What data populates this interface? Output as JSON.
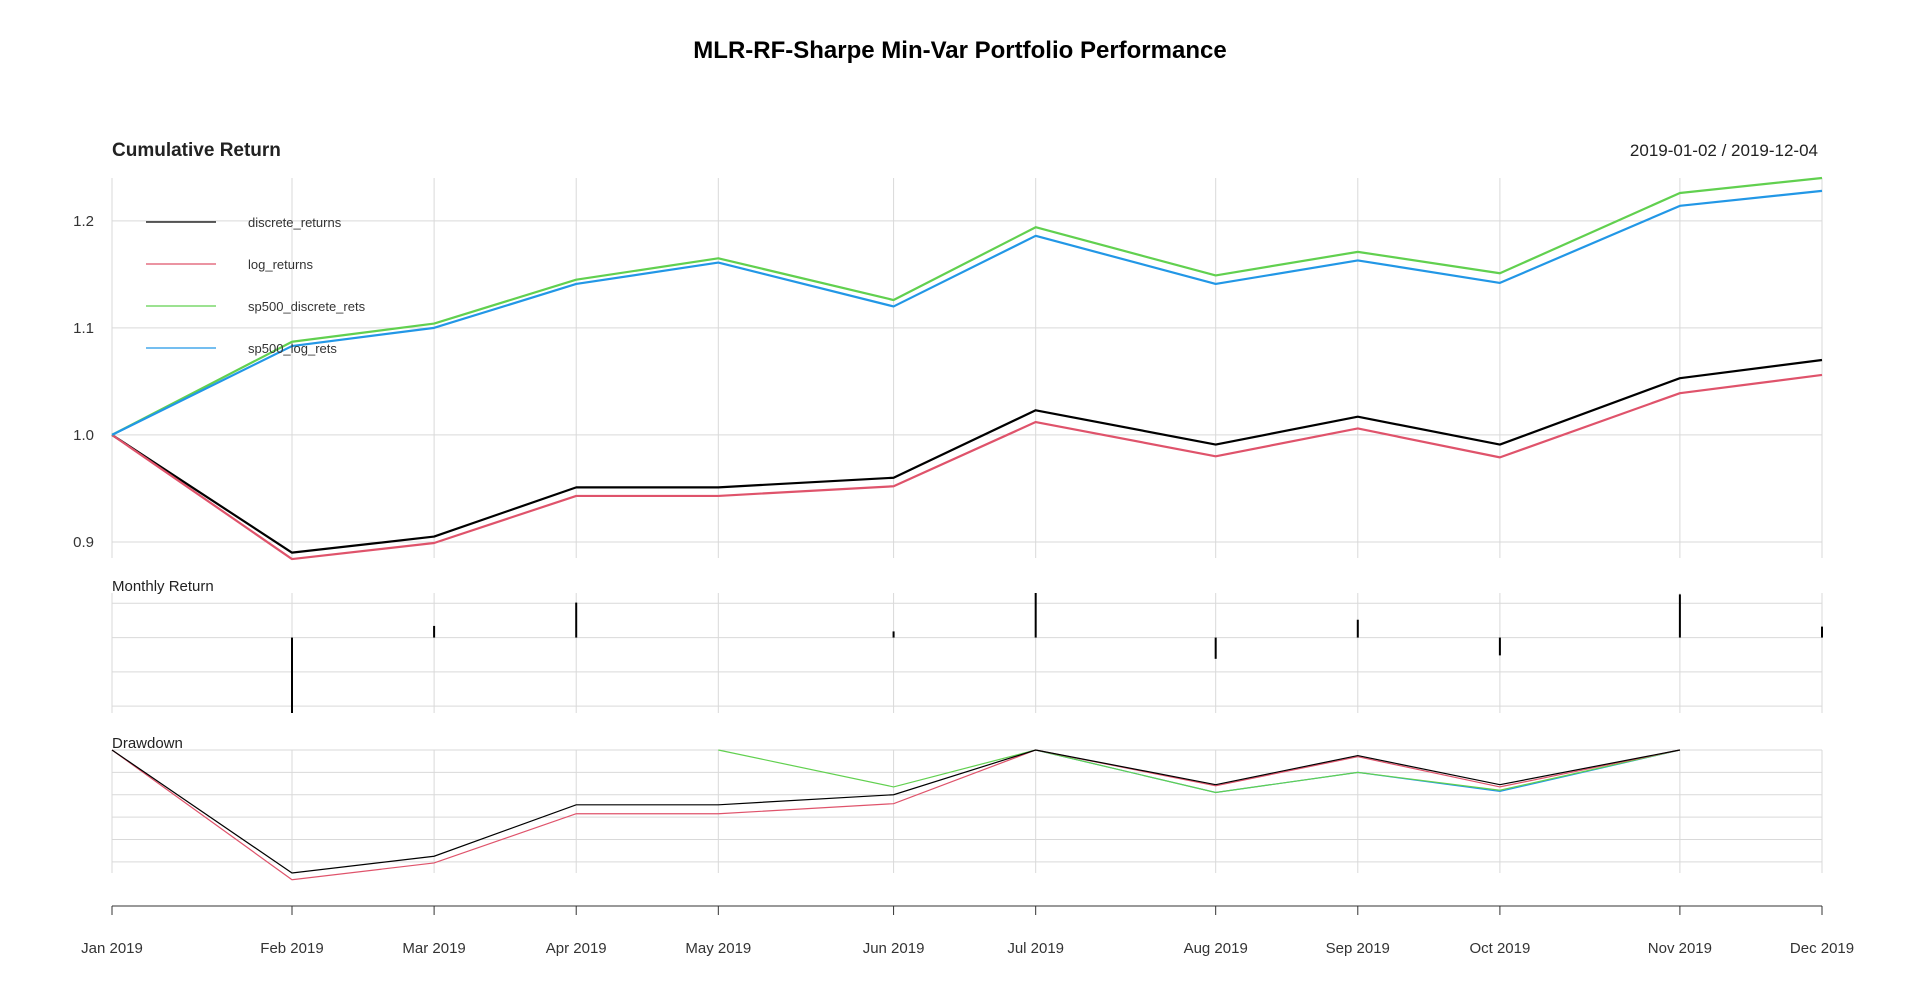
{
  "chart_data": {
    "type": "line",
    "title": "MLR-RF-Sharpe Min-Var Portfolio Performance",
    "date_range": "2019-01-02 / 2019-12-04",
    "x": [
      "Jan 2019",
      "Feb 2019",
      "Mar 2019",
      "Apr 2019",
      "May 2019",
      "Jun 2019",
      "Jul 2019",
      "Aug 2019",
      "Sep 2019",
      "Oct 2019",
      "Nov 2019",
      "Dec 2019"
    ],
    "x_days": [
      0,
      38,
      68,
      98,
      128,
      165,
      195,
      233,
      263,
      293,
      331,
      361
    ],
    "grid": true,
    "legend_position": "top-left",
    "panels": {
      "cumulative": {
        "title": "Cumulative Return",
        "ylim": [
          0.885,
          1.24
        ],
        "yticks": [
          0.9,
          1.0,
          1.1,
          1.2
        ],
        "ytick_labels": [
          "0.9",
          "1.0",
          "1.1",
          "1.2"
        ],
        "series": [
          {
            "name": "discrete_returns",
            "color": "#000000",
            "values": [
              1.0,
              0.89,
              0.905,
              0.951,
              0.951,
              0.96,
              1.023,
              0.991,
              1.017,
              0.991,
              1.053,
              1.07
            ]
          },
          {
            "name": "log_returns",
            "color": "#DF536B",
            "values": [
              1.0,
              0.884,
              0.899,
              0.943,
              0.943,
              0.952,
              1.012,
              0.98,
              1.006,
              0.979,
              1.039,
              1.056
            ]
          },
          {
            "name": "sp500_discrete_rets",
            "color": "#61D04F",
            "values": [
              1.0,
              1.087,
              1.104,
              1.145,
              1.165,
              1.126,
              1.194,
              1.149,
              1.171,
              1.151,
              1.226,
              1.24
            ]
          },
          {
            "name": "sp500_log_rets",
            "color": "#2297E6",
            "values": [
              1.0,
              1.083,
              1.1,
              1.141,
              1.161,
              1.12,
              1.186,
              1.141,
              1.163,
              1.142,
              1.214,
              1.228
            ]
          }
        ]
      },
      "monthly": {
        "title": "Monthly Return",
        "ylim": [
          -0.11,
          0.065
        ],
        "gridlines": [
          -0.1,
          -0.05,
          0.0,
          0.05
        ],
        "values": [
          0,
          -0.11,
          0.017,
          0.051,
          0.0,
          0.009,
          0.065,
          -0.031,
          0.026,
          -0.026,
          0.063,
          0.016
        ]
      },
      "drawdown": {
        "title": "Drawdown",
        "ylim": [
          -0.11,
          0.0
        ],
        "gridlines": [
          0.0,
          -0.02,
          -0.04,
          -0.06,
          -0.08,
          -0.1
        ],
        "series": [
          {
            "name": "discrete_returns",
            "color": "#000000",
            "values": [
              0.0,
              -0.11,
              -0.095,
              -0.049,
              -0.049,
              -0.04,
              0.0,
              -0.031,
              -0.005,
              -0.031,
              0.0,
              null
            ]
          },
          {
            "name": "log_returns",
            "color": "#DF536B",
            "values": [
              0.0,
              -0.116,
              -0.101,
              -0.057,
              -0.057,
              -0.048,
              0.0,
              -0.032,
              -0.006,
              -0.033,
              0.0,
              null
            ]
          },
          {
            "name": "sp500_discrete_rets",
            "color": "#61D04F",
            "values": [
              null,
              null,
              null,
              null,
              0.0,
              -0.033,
              0.0,
              -0.038,
              -0.02,
              -0.036,
              0.0,
              null
            ]
          },
          {
            "name": "sp500_log_rets",
            "color": "#2297E6",
            "values": [
              null,
              null,
              null,
              null,
              null,
              null,
              0.0,
              -0.038,
              -0.02,
              -0.037,
              0.0,
              null
            ]
          }
        ]
      }
    }
  }
}
